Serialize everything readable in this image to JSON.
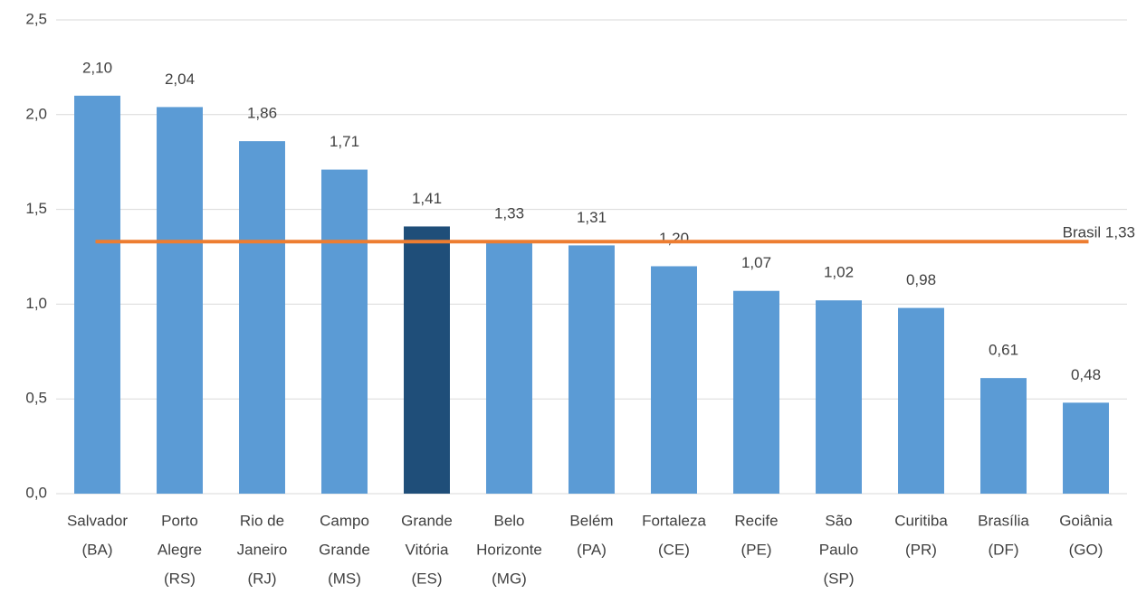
{
  "chart_data": {
    "type": "bar",
    "categories": [
      [
        "Salvador",
        "(BA)"
      ],
      [
        "Porto",
        "Alegre",
        "(RS)"
      ],
      [
        "Rio de",
        "Janeiro",
        "(RJ)"
      ],
      [
        "Campo",
        "Grande",
        "(MS)"
      ],
      [
        "Grande",
        "Vitória",
        "(ES)"
      ],
      [
        "Belo",
        "Horizonte",
        "(MG)"
      ],
      [
        "Belém",
        "(PA)"
      ],
      [
        "Fortaleza",
        "(CE)"
      ],
      [
        "Recife",
        "(PE)"
      ],
      [
        "São",
        "Paulo",
        "(SP)"
      ],
      [
        "Curitiba",
        "(PR)"
      ],
      [
        "Brasília",
        "(DF)"
      ],
      [
        "Goiânia",
        "(GO)"
      ]
    ],
    "values": [
      2.1,
      2.04,
      1.86,
      1.71,
      1.41,
      1.33,
      1.31,
      1.2,
      1.07,
      1.02,
      0.98,
      0.61,
      0.48
    ],
    "value_labels": [
      "2,10",
      "2,04",
      "1,86",
      "1,71",
      "1,41",
      "1,33",
      "1,31",
      "1,20",
      "1,07",
      "1,02",
      "0,98",
      "0,61",
      "0,48"
    ],
    "colors": [
      "#5b9bd5",
      "#5b9bd5",
      "#5b9bd5",
      "#5b9bd5",
      "#1f4e79",
      "#5b9bd5",
      "#5b9bd5",
      "#5b9bd5",
      "#5b9bd5",
      "#5b9bd5",
      "#5b9bd5",
      "#5b9bd5",
      "#5b9bd5"
    ],
    "reference_line": {
      "label": "Brasil 1,33",
      "value": 1.33,
      "color": "#ed7d31"
    },
    "ylim": [
      0,
      2.5
    ],
    "yticks": [
      {
        "value": 0,
        "label": "0,0"
      },
      {
        "value": 0.5,
        "label": "0,5"
      },
      {
        "value": 1,
        "label": "1,0"
      },
      {
        "value": 1.5,
        "label": "1,5"
      },
      {
        "value": 2,
        "label": "2,0"
      },
      {
        "value": 2.5,
        "label": "2,5"
      }
    ],
    "grid": true
  }
}
